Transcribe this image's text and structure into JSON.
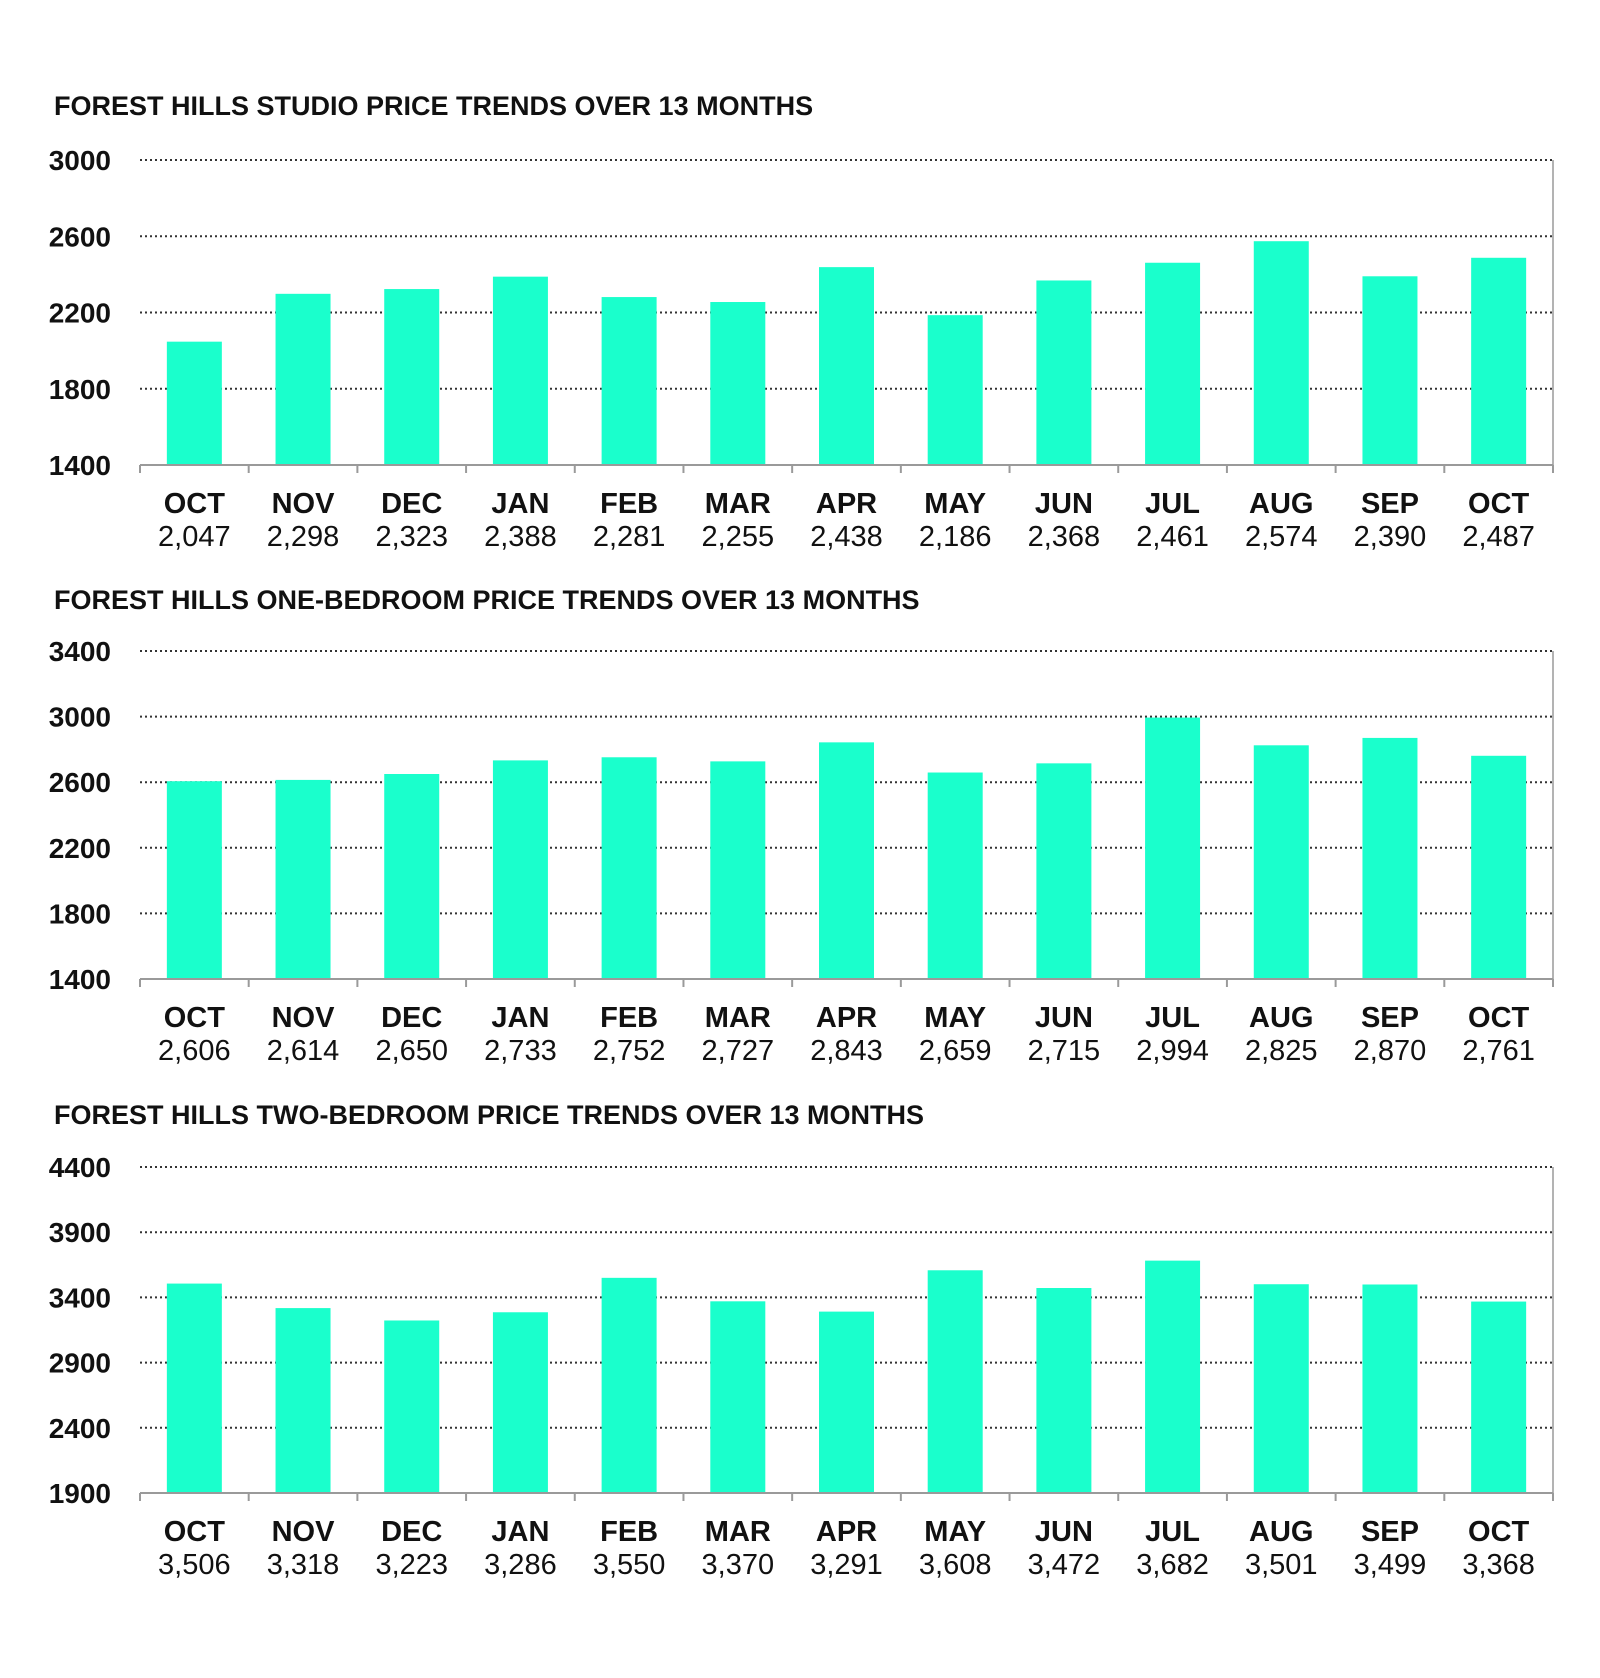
{
  "colors": {
    "bar": "#1affcc",
    "grid": "#333333",
    "axis": "#9a9a9a",
    "text": "#111111"
  },
  "chart_data": [
    {
      "type": "bar",
      "title": "FOREST HILLS STUDIO PRICE TRENDS OVER 13 MONTHS",
      "categories": [
        "OCT",
        "NOV",
        "DEC",
        "JAN",
        "FEB",
        "MAR",
        "APR",
        "MAY",
        "JUN",
        "JUL",
        "AUG",
        "SEP",
        "OCT"
      ],
      "value_labels": [
        "2,047",
        "2,298",
        "2,323",
        "2,388",
        "2,281",
        "2,255",
        "2,438",
        "2,186",
        "2,368",
        "2,461",
        "2,574",
        "2,390",
        "2,487"
      ],
      "values": [
        2047,
        2298,
        2323,
        2388,
        2281,
        2255,
        2438,
        2186,
        2368,
        2461,
        2574,
        2390,
        2487
      ],
      "ylim": [
        1400,
        3000
      ],
      "yticks": [
        3000,
        2600,
        2200,
        1800,
        1400
      ],
      "grid": true,
      "xlabel": "",
      "ylabel": ""
    },
    {
      "type": "bar",
      "title": "FOREST HILLS ONE-BEDROOM PRICE TRENDS OVER 13 MONTHS",
      "categories": [
        "OCT",
        "NOV",
        "DEC",
        "JAN",
        "FEB",
        "MAR",
        "APR",
        "MAY",
        "JUN",
        "JUL",
        "AUG",
        "SEP",
        "OCT"
      ],
      "value_labels": [
        "2,606",
        "2,614",
        "2,650",
        "2,733",
        "2,752",
        "2,727",
        "2,843",
        "2,659",
        "2,715",
        "2,994",
        "2,825",
        "2,870",
        "2,761"
      ],
      "values": [
        2606,
        2614,
        2650,
        2733,
        2752,
        2727,
        2843,
        2659,
        2715,
        2994,
        2825,
        2870,
        2761
      ],
      "ylim": [
        1400,
        3400
      ],
      "yticks": [
        3400,
        3000,
        2600,
        2200,
        1800,
        1400
      ],
      "grid": true,
      "xlabel": "",
      "ylabel": ""
    },
    {
      "type": "bar",
      "title": "FOREST HILLS TWO-BEDROOM PRICE TRENDS OVER 13 MONTHS",
      "categories": [
        "OCT",
        "NOV",
        "DEC",
        "JAN",
        "FEB",
        "MAR",
        "APR",
        "MAY",
        "JUN",
        "JUL",
        "AUG",
        "SEP",
        "OCT"
      ],
      "value_labels": [
        "3,506",
        "3,318",
        "3,223",
        "3,286",
        "3,550",
        "3,370",
        "3,291",
        "3,608",
        "3,472",
        "3,682",
        "3,501",
        "3,499",
        "3,368"
      ],
      "values": [
        3506,
        3318,
        3223,
        3286,
        3550,
        3370,
        3291,
        3608,
        3472,
        3682,
        3501,
        3499,
        3368
      ],
      "ylim": [
        1900,
        4400
      ],
      "yticks": [
        4400,
        3900,
        3400,
        2900,
        2400,
        1900
      ],
      "grid": true,
      "xlabel": "",
      "ylabel": ""
    }
  ]
}
